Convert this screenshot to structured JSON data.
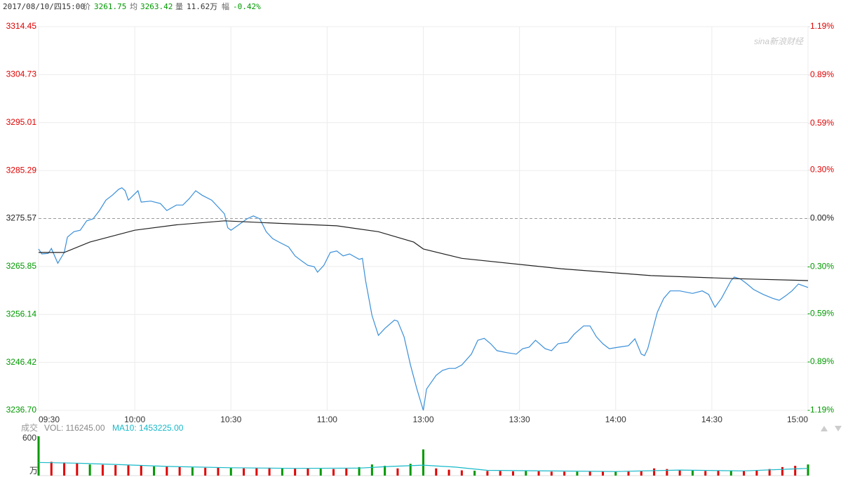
{
  "header": {
    "datetime": "2017/08/10/四15:00",
    "price": "3261.75",
    "avg": "3263.42",
    "vol_label": "量",
    "vol": "11.62万",
    "chg_label": "幅",
    "chg": "-0.42%"
  },
  "chart_data": [
    {
      "type": "line",
      "watermark": "sina新浪财经",
      "xlim": [
        0,
        240
      ],
      "xticks": [
        {
          "value": 0,
          "label": "09:30"
        },
        {
          "value": 30,
          "label": "10:00"
        },
        {
          "value": 60,
          "label": "10:30"
        },
        {
          "value": 90,
          "label": "11:00"
        },
        {
          "value": 120,
          "label": "13:00"
        },
        {
          "value": 150,
          "label": "13:30"
        },
        {
          "value": 180,
          "label": "14:00"
        },
        {
          "value": 210,
          "label": "14:30"
        },
        {
          "value": 240,
          "label": "15:00"
        }
      ],
      "ylim": [
        3236.7,
        3314.45
      ],
      "yticks": [
        {
          "value": 3236.7,
          "label": "3236.70"
        },
        3246.42,
        3256.14,
        3265.85,
        3275.57,
        3285.29,
        3295.01,
        3304.73,
        3314.45
      ],
      "y2lim": [
        -1.19,
        1.19
      ],
      "y2ticks": [
        {
          "value": -1.19,
          "label": "-1.19%"
        },
        {
          "value": -0.89,
          "label": "-0.89%"
        },
        {
          "value": -0.59,
          "label": "-0.59%"
        },
        {
          "value": -0.3,
          "label": "-0.30%"
        },
        {
          "value": 0.0,
          "label": "0.00%"
        },
        {
          "value": 0.3,
          "label": "0.30%"
        },
        {
          "value": 0.59,
          "label": "0.59%"
        },
        {
          "value": 0.89,
          "label": "0.89%"
        },
        {
          "value": 1.19,
          "label": "1.19%"
        }
      ],
      "grid": true,
      "series": [
        {
          "name": "价",
          "color": "#3a8fd9",
          "x": [
            0,
            1,
            3,
            4,
            6,
            8,
            9,
            11,
            13,
            15,
            17,
            19,
            21,
            23,
            25,
            26,
            27,
            28,
            31,
            32,
            35,
            38,
            40,
            43,
            45,
            47,
            49,
            51,
            54,
            56,
            58,
            59,
            60,
            62,
            65,
            67,
            69,
            71,
            73,
            75,
            78,
            80,
            82,
            84,
            86,
            87,
            89,
            91,
            93,
            95,
            97,
            100,
            101,
            102,
            104,
            106,
            108,
            111,
            112,
            114,
            116,
            118,
            120,
            121,
            124,
            126,
            128,
            130,
            132,
            135,
            137,
            139,
            141,
            143,
            146,
            149,
            151,
            153,
            155,
            158,
            160,
            162,
            165,
            167,
            170,
            172,
            174,
            176,
            178,
            181,
            184,
            186,
            188,
            189,
            190,
            193,
            195,
            197,
            200,
            204,
            207,
            209,
            211,
            213,
            216,
            217,
            219,
            221,
            223,
            226,
            229,
            231,
            233,
            235,
            237,
            240
          ],
          "values": [
            3269.4,
            3268.4,
            3268.5,
            3269.5,
            3266.5,
            3268.7,
            3271.8,
            3272.9,
            3273.2,
            3275.1,
            3275.5,
            3277.2,
            3279.3,
            3280.3,
            3281.5,
            3281.8,
            3281.2,
            3279.3,
            3281.2,
            3278.9,
            3279.1,
            3278.6,
            3277.2,
            3278.3,
            3278.3,
            3279.6,
            3281.2,
            3280.3,
            3279.3,
            3277.9,
            3276.5,
            3273.7,
            3273.2,
            3274.1,
            3275.5,
            3276.1,
            3275.5,
            3272.9,
            3271.5,
            3270.8,
            3269.8,
            3268.0,
            3267.0,
            3266.1,
            3265.8,
            3264.7,
            3266.1,
            3268.7,
            3269.0,
            3268.0,
            3268.4,
            3267.3,
            3267.5,
            3263.0,
            3255.9,
            3251.9,
            3253.3,
            3255.0,
            3254.8,
            3251.6,
            3245.9,
            3241.0,
            3236.7,
            3241.0,
            3243.8,
            3244.8,
            3245.2,
            3245.2,
            3245.9,
            3248.1,
            3250.9,
            3251.3,
            3250.2,
            3248.8,
            3248.4,
            3248.1,
            3249.2,
            3249.5,
            3250.9,
            3249.2,
            3248.8,
            3250.2,
            3250.5,
            3252.1,
            3253.8,
            3253.8,
            3251.6,
            3250.2,
            3249.2,
            3249.5,
            3249.8,
            3251.2,
            3248.1,
            3247.8,
            3249.2,
            3256.6,
            3259.4,
            3260.9,
            3260.9,
            3260.4,
            3260.9,
            3260.2,
            3257.6,
            3259.4,
            3263.0,
            3263.7,
            3263.3,
            3262.3,
            3261.2,
            3260.2,
            3259.4,
            3259.0,
            3259.9,
            3260.9,
            3262.3,
            3261.6
          ]
        },
        {
          "name": "均",
          "color": "#222222",
          "x": [
            0,
            8,
            16,
            30,
            43,
            58,
            75,
            93,
            106,
            117,
            120,
            132,
            163,
            191,
            217,
            240
          ],
          "values": [
            3268.7,
            3268.7,
            3270.8,
            3273.2,
            3274.3,
            3275.1,
            3274.6,
            3274.1,
            3272.9,
            3270.8,
            3269.4,
            3267.5,
            3265.4,
            3264.0,
            3263.4,
            3263.0
          ]
        }
      ]
    },
    {
      "type": "bar",
      "title": "成交",
      "vol_label": "VOL: 116245.00",
      "ma_label": "MA10: 1453225.00",
      "unit": "万",
      "xlim": [
        0,
        240
      ],
      "ylim": [
        0,
        600
      ],
      "yticks": [
        600
      ],
      "series": [
        {
          "name": "VOL",
          "x": [
            0,
            4,
            8,
            12,
            16,
            20,
            24,
            28,
            32,
            36,
            40,
            44,
            48,
            52,
            56,
            60,
            64,
            68,
            72,
            76,
            80,
            84,
            88,
            92,
            96,
            100,
            104,
            108,
            112,
            116,
            120,
            124,
            128,
            132,
            136,
            140,
            144,
            148,
            152,
            156,
            160,
            164,
            168,
            172,
            176,
            180,
            184,
            188,
            192,
            196,
            200,
            204,
            208,
            212,
            216,
            220,
            224,
            228,
            232,
            236,
            240
          ],
          "values": [
            600,
            210,
            200,
            190,
            170,
            165,
            160,
            155,
            150,
            140,
            135,
            130,
            125,
            120,
            120,
            115,
            110,
            115,
            120,
            110,
            105,
            110,
            105,
            100,
            110,
            130,
            170,
            150,
            110,
            180,
            400,
            110,
            90,
            80,
            75,
            70,
            70,
            65,
            70,
            65,
            60,
            60,
            60,
            65,
            60,
            60,
            60,
            65,
            110,
            100,
            80,
            75,
            70,
            70,
            75,
            70,
            80,
            100,
            130,
            150,
            170
          ],
          "colors": [
            "#009900",
            "#e00000",
            "#e00000",
            "#e00000",
            "#009900",
            "#e00000",
            "#e00000",
            "#e00000",
            "#e00000",
            "#009900",
            "#e00000",
            "#e00000",
            "#009900",
            "#e00000",
            "#e00000",
            "#009900",
            "#e00000",
            "#e00000",
            "#e00000",
            "#009900",
            "#e00000",
            "#e00000",
            "#009900",
            "#e00000",
            "#e00000",
            "#009900",
            "#009900",
            "#009900",
            "#e00000",
            "#009900",
            "#009900",
            "#e00000",
            "#e00000",
            "#e00000",
            "#009900",
            "#e00000",
            "#e00000",
            "#e00000",
            "#009900",
            "#e00000",
            "#e00000",
            "#e00000",
            "#009900",
            "#e00000",
            "#e00000",
            "#009900",
            "#e00000",
            "#e00000",
            "#e00000",
            "#e00000",
            "#e00000",
            "#009900",
            "#e00000",
            "#e00000",
            "#009900",
            "#e00000",
            "#e00000",
            "#e00000",
            "#e00000",
            "#e00000",
            "#009900"
          ]
        },
        {
          "name": "MA10",
          "type": "line",
          "color": "#17b9c9",
          "x": [
            0,
            12,
            24,
            40,
            60,
            80,
            100,
            110,
            120,
            130,
            140,
            180,
            200,
            220,
            240
          ],
          "values": [
            200,
            190,
            170,
            140,
            120,
            110,
            115,
            140,
            160,
            130,
            80,
            62,
            85,
            72,
            110
          ]
        }
      ]
    }
  ]
}
